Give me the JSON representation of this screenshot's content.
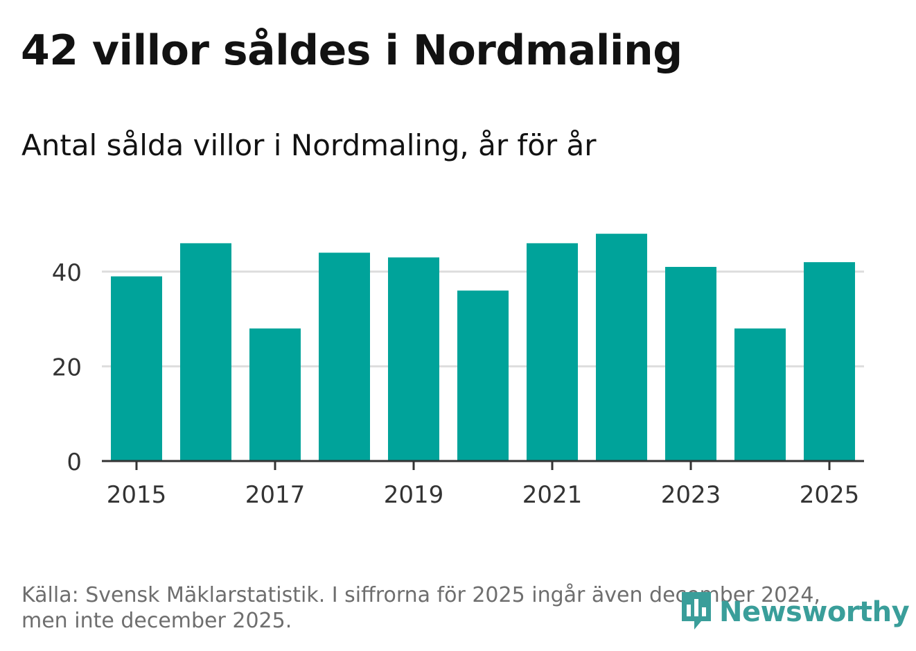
{
  "title": "42 villor såldes i Nordmaling",
  "subtitle": "Antal sålda villor i Nordmaling, år för år",
  "source": {
    "line1": "Källa: Svensk Mäklarstatistik. I siffrorna för 2025 ingår även december 2024,",
    "line2": "men inte december 2025."
  },
  "logo": {
    "text": "Newsworthy",
    "icon": "bar-chart-bubble-icon",
    "color": "#3a9e9a"
  },
  "colors": {
    "bar": "#00a39a",
    "grid": "#dddddd",
    "axis": "#333333",
    "text": "#333333"
  },
  "chart_data": {
    "type": "bar",
    "title": "Antal sålda villor i Nordmaling, år för år",
    "xlabel": "",
    "ylabel": "",
    "categories": [
      "2015",
      "2016",
      "2017",
      "2018",
      "2019",
      "2020",
      "2021",
      "2022",
      "2023",
      "2024",
      "2025"
    ],
    "values": [
      39,
      46,
      28,
      44,
      43,
      36,
      46,
      48,
      41,
      28,
      42
    ],
    "x_tick_labels": [
      "2015",
      "2017",
      "2019",
      "2021",
      "2023",
      "2025"
    ],
    "y_ticks": [
      0,
      20,
      40
    ],
    "ylim": [
      0,
      50
    ],
    "grid": true
  }
}
